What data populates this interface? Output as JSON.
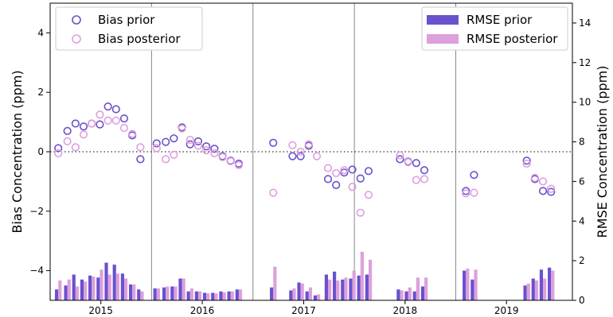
{
  "chart_data": {
    "type": "scatter+bar",
    "title": "",
    "xticks": [
      "2015",
      "2016",
      "2017",
      "2018",
      "2019"
    ],
    "xlim": [
      2014.6,
      2019.75
    ],
    "year_dividers": [
      2015.6,
      2016.6,
      2017.6,
      2018.6
    ],
    "left_axis": {
      "label": "Bias Concentration (ppm)",
      "ylim": [
        -5,
        5
      ],
      "ticks": [
        -4,
        -2,
        0,
        2,
        4
      ]
    },
    "right_axis": {
      "label": "RMSE Concentration (ppm)",
      "ylim": [
        0,
        15
      ],
      "ticks": [
        0,
        2,
        4,
        6,
        8,
        10,
        12,
        14
      ]
    },
    "zero_line": true,
    "legend_left": [
      {
        "name": "Bias prior",
        "color": "#6a51cd"
      },
      {
        "name": "Bias posterior",
        "color": "#dda0dd"
      }
    ],
    "legend_right": [
      {
        "name": "RMSE prior",
        "color": "#6a51cd"
      },
      {
        "name": "RMSE posterior",
        "color": "#dda0dd"
      }
    ],
    "bias_prior": [
      [
        2014.68,
        0.12
      ],
      [
        2014.77,
        0.7
      ],
      [
        2014.85,
        0.95
      ],
      [
        2014.93,
        0.85
      ],
      [
        2015.01,
        0.95
      ],
      [
        2015.09,
        0.92
      ],
      [
        2015.17,
        1.52
      ],
      [
        2015.25,
        1.43
      ],
      [
        2015.33,
        1.12
      ],
      [
        2015.41,
        0.55
      ],
      [
        2015.49,
        -0.25
      ],
      [
        2015.65,
        0.28
      ],
      [
        2015.74,
        0.33
      ],
      [
        2015.82,
        0.45
      ],
      [
        2015.9,
        0.82
      ],
      [
        2015.98,
        0.25
      ],
      [
        2016.06,
        0.35
      ],
      [
        2016.14,
        0.18
      ],
      [
        2016.22,
        0.1
      ],
      [
        2016.3,
        -0.15
      ],
      [
        2016.38,
        -0.3
      ],
      [
        2016.46,
        -0.4
      ],
      [
        2016.8,
        0.3
      ],
      [
        2016.99,
        -0.15
      ],
      [
        2017.07,
        -0.15
      ],
      [
        2017.15,
        0.2
      ],
      [
        2017.34,
        -0.92
      ],
      [
        2017.42,
        -1.12
      ],
      [
        2017.5,
        -0.7
      ],
      [
        2017.58,
        -0.6
      ],
      [
        2017.66,
        -0.9
      ],
      [
        2017.74,
        -0.65
      ],
      [
        2018.05,
        -0.25
      ],
      [
        2018.13,
        -0.33
      ],
      [
        2018.21,
        -0.38
      ],
      [
        2018.29,
        -0.62
      ],
      [
        2018.7,
        -1.32
      ],
      [
        2018.78,
        -0.78
      ],
      [
        2019.3,
        -0.3
      ],
      [
        2019.38,
        -0.92
      ],
      [
        2019.46,
        -1.32
      ],
      [
        2019.54,
        -1.35
      ]
    ],
    "bias_posterior": [
      [
        2014.68,
        -0.05
      ],
      [
        2014.77,
        0.35
      ],
      [
        2014.85,
        0.15
      ],
      [
        2014.93,
        0.58
      ],
      [
        2015.01,
        0.95
      ],
      [
        2015.09,
        1.25
      ],
      [
        2015.17,
        1.05
      ],
      [
        2015.25,
        1.05
      ],
      [
        2015.33,
        0.8
      ],
      [
        2015.41,
        0.6
      ],
      [
        2015.49,
        0.15
      ],
      [
        2015.65,
        0.12
      ],
      [
        2015.74,
        -0.25
      ],
      [
        2015.82,
        -0.1
      ],
      [
        2015.9,
        0.78
      ],
      [
        2015.98,
        0.4
      ],
      [
        2016.06,
        0.2
      ],
      [
        2016.14,
        0.05
      ],
      [
        2016.22,
        -0.05
      ],
      [
        2016.3,
        -0.18
      ],
      [
        2016.38,
        -0.32
      ],
      [
        2016.46,
        -0.45
      ],
      [
        2016.8,
        -1.38
      ],
      [
        2016.99,
        0.22
      ],
      [
        2017.07,
        0.0
      ],
      [
        2017.15,
        0.25
      ],
      [
        2017.23,
        -0.15
      ],
      [
        2017.34,
        -0.55
      ],
      [
        2017.42,
        -0.72
      ],
      [
        2017.5,
        -0.62
      ],
      [
        2017.58,
        -1.18
      ],
      [
        2017.66,
        -2.05
      ],
      [
        2017.74,
        -1.45
      ],
      [
        2018.05,
        -0.12
      ],
      [
        2018.13,
        -0.35
      ],
      [
        2018.21,
        -0.95
      ],
      [
        2018.29,
        -0.92
      ],
      [
        2018.7,
        -1.4
      ],
      [
        2018.78,
        -1.38
      ],
      [
        2019.3,
        -0.4
      ],
      [
        2019.38,
        -0.88
      ],
      [
        2019.46,
        -1.0
      ],
      [
        2019.54,
        -1.25
      ]
    ],
    "rmse_prior": [
      [
        2014.68,
        0.55
      ],
      [
        2014.77,
        0.75
      ],
      [
        2014.85,
        1.3
      ],
      [
        2014.93,
        1.05
      ],
      [
        2015.01,
        1.25
      ],
      [
        2015.09,
        1.15
      ],
      [
        2015.17,
        1.9
      ],
      [
        2015.25,
        1.8
      ],
      [
        2015.33,
        1.35
      ],
      [
        2015.41,
        0.8
      ],
      [
        2015.49,
        0.55
      ],
      [
        2015.65,
        0.6
      ],
      [
        2015.74,
        0.65
      ],
      [
        2015.82,
        0.7
      ],
      [
        2015.9,
        1.1
      ],
      [
        2015.98,
        0.45
      ],
      [
        2016.06,
        0.45
      ],
      [
        2016.14,
        0.38
      ],
      [
        2016.22,
        0.38
      ],
      [
        2016.3,
        0.45
      ],
      [
        2016.38,
        0.45
      ],
      [
        2016.46,
        0.55
      ],
      [
        2016.8,
        0.65
      ],
      [
        2016.99,
        0.5
      ],
      [
        2017.07,
        0.9
      ],
      [
        2017.15,
        0.45
      ],
      [
        2017.23,
        0.25
      ],
      [
        2017.34,
        1.3
      ],
      [
        2017.42,
        1.45
      ],
      [
        2017.5,
        1.05
      ],
      [
        2017.58,
        1.1
      ],
      [
        2017.66,
        1.25
      ],
      [
        2017.74,
        1.3
      ],
      [
        2018.05,
        0.55
      ],
      [
        2018.13,
        0.45
      ],
      [
        2018.21,
        0.45
      ],
      [
        2018.29,
        0.7
      ],
      [
        2018.7,
        1.5
      ],
      [
        2018.78,
        1.05
      ],
      [
        2019.3,
        0.75
      ],
      [
        2019.38,
        1.1
      ],
      [
        2019.46,
        1.55
      ],
      [
        2019.54,
        1.65
      ]
    ],
    "rmse_posterior": [
      [
        2014.68,
        1.0
      ],
      [
        2014.77,
        1.05
      ],
      [
        2014.85,
        0.7
      ],
      [
        2014.93,
        0.95
      ],
      [
        2015.01,
        1.2
      ],
      [
        2015.09,
        1.55
      ],
      [
        2015.17,
        1.3
      ],
      [
        2015.25,
        1.35
      ],
      [
        2015.33,
        1.1
      ],
      [
        2015.41,
        0.8
      ],
      [
        2015.49,
        0.45
      ],
      [
        2015.65,
        0.6
      ],
      [
        2015.74,
        0.7
      ],
      [
        2015.82,
        0.7
      ],
      [
        2015.9,
        1.1
      ],
      [
        2015.98,
        0.6
      ],
      [
        2016.06,
        0.45
      ],
      [
        2016.14,
        0.35
      ],
      [
        2016.22,
        0.35
      ],
      [
        2016.3,
        0.4
      ],
      [
        2016.38,
        0.45
      ],
      [
        2016.46,
        0.55
      ],
      [
        2016.8,
        1.7
      ],
      [
        2016.99,
        0.6
      ],
      [
        2017.07,
        0.85
      ],
      [
        2017.15,
        0.65
      ],
      [
        2017.23,
        0.3
      ],
      [
        2017.34,
        1.05
      ],
      [
        2017.42,
        1.0
      ],
      [
        2017.5,
        1.15
      ],
      [
        2017.58,
        1.5
      ],
      [
        2017.66,
        2.45
      ],
      [
        2017.74,
        2.05
      ],
      [
        2018.05,
        0.5
      ],
      [
        2018.13,
        0.65
      ],
      [
        2018.21,
        1.15
      ],
      [
        2018.29,
        1.15
      ],
      [
        2018.7,
        1.6
      ],
      [
        2018.78,
        1.55
      ],
      [
        2019.3,
        0.85
      ],
      [
        2019.38,
        1.0
      ],
      [
        2019.46,
        1.1
      ],
      [
        2019.54,
        1.5
      ]
    ]
  }
}
